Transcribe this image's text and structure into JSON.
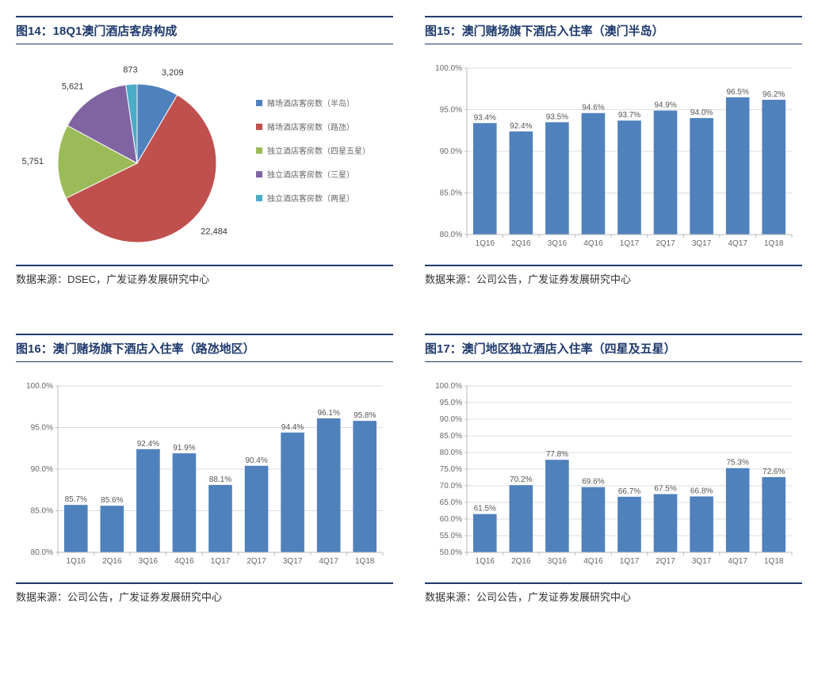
{
  "panel14": {
    "title": "图14：18Q1澳门酒店客房构成",
    "source": "数据来源：DSEC，广发证券发展研究中心",
    "chart": {
      "type": "pie",
      "slices": [
        {
          "label": "赌场酒店客房数（半岛）",
          "value": 3209,
          "color": "#4f81bd"
        },
        {
          "label": "赌场酒店客房数（路氹）",
          "value": 22484,
          "color": "#c0504d"
        },
        {
          "label": "独立酒店客房数（四星五星）",
          "value": 5751,
          "color": "#9bbb59"
        },
        {
          "label": "独立酒店客房数（三星）",
          "value": 5621,
          "color": "#8064a2"
        },
        {
          "label": "独立酒店客房数（两星）",
          "value": 873,
          "color": "#4bacc6"
        }
      ],
      "background_color": "#ffffff",
      "label_fontsize": 11,
      "legend_fontsize": 10,
      "legend_swatch_size": 8
    }
  },
  "panel15": {
    "title": "图15：澳门赌场旗下酒店入住率（澳门半岛）",
    "source": "数据来源：公司公告，广发证券发展研究中心",
    "chart": {
      "type": "bar",
      "categories": [
        "1Q16",
        "2Q16",
        "3Q16",
        "4Q16",
        "1Q17",
        "2Q17",
        "3Q17",
        "4Q17",
        "1Q18"
      ],
      "values": [
        93.4,
        92.4,
        93.5,
        94.6,
        93.7,
        94.9,
        94.0,
        96.5,
        96.2
      ],
      "value_suffix": "%",
      "bar_color": "#4f81bd",
      "ylim": [
        80,
        100
      ],
      "ytick_step": 5,
      "background_color": "#ffffff",
      "grid_color": "#dddddd",
      "axis_color": "#bbbbbb",
      "bar_width_ratio": 0.65,
      "label_fontsize": 10
    }
  },
  "panel16": {
    "title": "图16：澳门赌场旗下酒店入住率（路氹地区）",
    "source": "数据来源：公司公告，广发证券发展研究中心",
    "chart": {
      "type": "bar",
      "categories": [
        "1Q16",
        "2Q16",
        "3Q16",
        "4Q16",
        "1Q17",
        "2Q17",
        "3Q17",
        "4Q17",
        "1Q18"
      ],
      "values": [
        85.7,
        85.6,
        92.4,
        91.9,
        88.1,
        90.4,
        94.4,
        96.1,
        95.8
      ],
      "value_suffix": "%",
      "bar_color": "#4f81bd",
      "ylim": [
        80,
        100
      ],
      "ytick_step": 5,
      "background_color": "#ffffff",
      "grid_color": "#dddddd",
      "axis_color": "#bbbbbb",
      "bar_width_ratio": 0.65,
      "label_fontsize": 10
    }
  },
  "panel17": {
    "title": "图17：澳门地区独立酒店入住率（四星及五星）",
    "source": "数据来源：公司公告，广发证券发展研究中心",
    "chart": {
      "type": "bar",
      "categories": [
        "1Q16",
        "2Q16",
        "3Q16",
        "4Q16",
        "1Q17",
        "2Q17",
        "3Q17",
        "4Q17",
        "1Q18"
      ],
      "values": [
        61.5,
        70.2,
        77.8,
        69.6,
        66.7,
        67.5,
        66.8,
        75.3,
        72.6
      ],
      "value_suffix": "%",
      "bar_color": "#4f81bd",
      "ylim": [
        50,
        100
      ],
      "ytick_step": 5,
      "background_color": "#ffffff",
      "grid_color": "#dddddd",
      "axis_color": "#bbbbbb",
      "bar_width_ratio": 0.65,
      "label_fontsize": 10
    }
  }
}
